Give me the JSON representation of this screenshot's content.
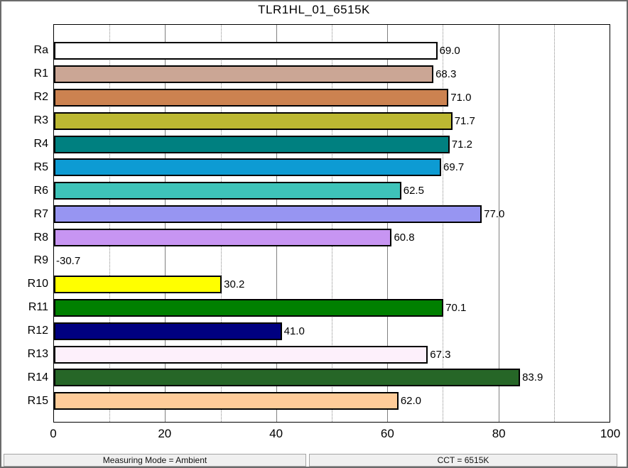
{
  "chart_data": {
    "type": "bar",
    "orientation": "horizontal",
    "title": "TLR1HL_01_6515K",
    "xlabel": "",
    "ylabel": "",
    "xlim": [
      0,
      100
    ],
    "xticks": [
      0,
      20,
      40,
      60,
      80,
      100
    ],
    "minor_ticks": [
      10,
      30,
      50,
      70,
      90
    ],
    "grid": true,
    "categories": [
      "Ra",
      "R1",
      "R2",
      "R3",
      "R4",
      "R5",
      "R6",
      "R7",
      "R8",
      "R9",
      "R10",
      "R11",
      "R12",
      "R13",
      "R14",
      "R15"
    ],
    "values": [
      69.0,
      68.3,
      71.0,
      71.7,
      71.2,
      69.7,
      62.5,
      77.0,
      60.8,
      -30.7,
      30.2,
      70.1,
      41.0,
      67.3,
      83.9,
      62.0
    ],
    "bars": [
      {
        "label": "Ra",
        "value": 69.0,
        "display": "69.0",
        "color": "#ffffff"
      },
      {
        "label": "R1",
        "value": 68.3,
        "display": "68.3",
        "color": "#cba695"
      },
      {
        "label": "R2",
        "value": 71.0,
        "display": "71.0",
        "color": "#cc8250"
      },
      {
        "label": "R3",
        "value": 71.7,
        "display": "71.7",
        "color": "#bcb832"
      },
      {
        "label": "R4",
        "value": 71.2,
        "display": "71.2",
        "color": "#008080"
      },
      {
        "label": "R5",
        "value": 69.7,
        "display": "69.7",
        "color": "#0d9bd3"
      },
      {
        "label": "R6",
        "value": 62.5,
        "display": "62.5",
        "color": "#3ec3b9"
      },
      {
        "label": "R7",
        "value": 77.0,
        "display": "77.0",
        "color": "#9795f2"
      },
      {
        "label": "R8",
        "value": 60.8,
        "display": "60.8",
        "color": "#c795f2"
      },
      {
        "label": "R9",
        "value": -30.7,
        "display": "-30.7",
        "color": null
      },
      {
        "label": "R10",
        "value": 30.2,
        "display": "30.2",
        "color": "#ffff00"
      },
      {
        "label": "R11",
        "value": 70.1,
        "display": "70.1",
        "color": "#008000"
      },
      {
        "label": "R12",
        "value": 41.0,
        "display": "41.0",
        "color": "#000080"
      },
      {
        "label": "R13",
        "value": 67.3,
        "display": "67.3",
        "color": "#fdf0fb"
      },
      {
        "label": "R14",
        "value": 83.9,
        "display": "83.9",
        "color": "#266627"
      },
      {
        "label": "R15",
        "value": 62.0,
        "display": "62.0",
        "color": "#ffcc99"
      }
    ],
    "colors": {
      "grid_major": "#808080",
      "grid_minor": "#8c8c8c",
      "bar_border": "#000000",
      "plot_border": "#000000",
      "window_border": "#6b6b6b",
      "statusbar_bg": "#f0f0f0"
    }
  },
  "statusbar": {
    "left": "Measuring Mode = Ambient",
    "right": "CCT = 6515K"
  }
}
